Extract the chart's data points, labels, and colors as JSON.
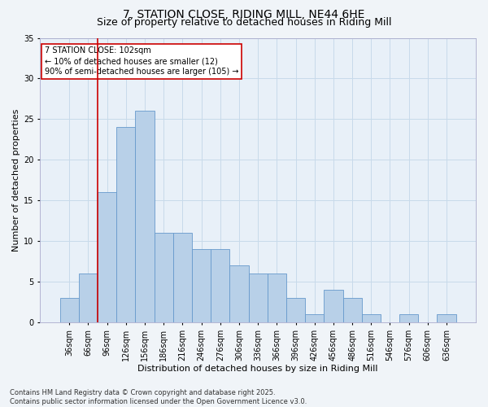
{
  "title_line1": "7, STATION CLOSE, RIDING MILL, NE44 6HE",
  "title_line2": "Size of property relative to detached houses in Riding Mill",
  "xlabel": "Distribution of detached houses by size in Riding Mill",
  "ylabel": "Number of detached properties",
  "categories": [
    "36sqm",
    "66sqm",
    "96sqm",
    "126sqm",
    "156sqm",
    "186sqm",
    "216sqm",
    "246sqm",
    "276sqm",
    "306sqm",
    "336sqm",
    "366sqm",
    "396sqm",
    "426sqm",
    "456sqm",
    "486sqm",
    "516sqm",
    "546sqm",
    "576sqm",
    "606sqm",
    "636sqm"
  ],
  "values": [
    3,
    6,
    16,
    24,
    26,
    11,
    11,
    9,
    9,
    7,
    6,
    6,
    3,
    1,
    4,
    3,
    1,
    0,
    1,
    0,
    1
  ],
  "bar_color": "#b8d0e8",
  "bar_edge_color": "#6699cc",
  "grid_color": "#c8daea",
  "bg_color": "#e8f0f8",
  "vline_color": "#cc0000",
  "annotation_text": "7 STATION CLOSE: 102sqm\n← 10% of detached houses are smaller (12)\n90% of semi-detached houses are larger (105) →",
  "annotation_box_color": "#cc0000",
  "ylim": [
    0,
    35
  ],
  "yticks": [
    0,
    5,
    10,
    15,
    20,
    25,
    30,
    35
  ],
  "footer": "Contains HM Land Registry data © Crown copyright and database right 2025.\nContains public sector information licensed under the Open Government Licence v3.0.",
  "title_fontsize": 10,
  "subtitle_fontsize": 9,
  "xlabel_fontsize": 8,
  "ylabel_fontsize": 8,
  "tick_fontsize": 7,
  "footer_fontsize": 6,
  "annot_fontsize": 7
}
